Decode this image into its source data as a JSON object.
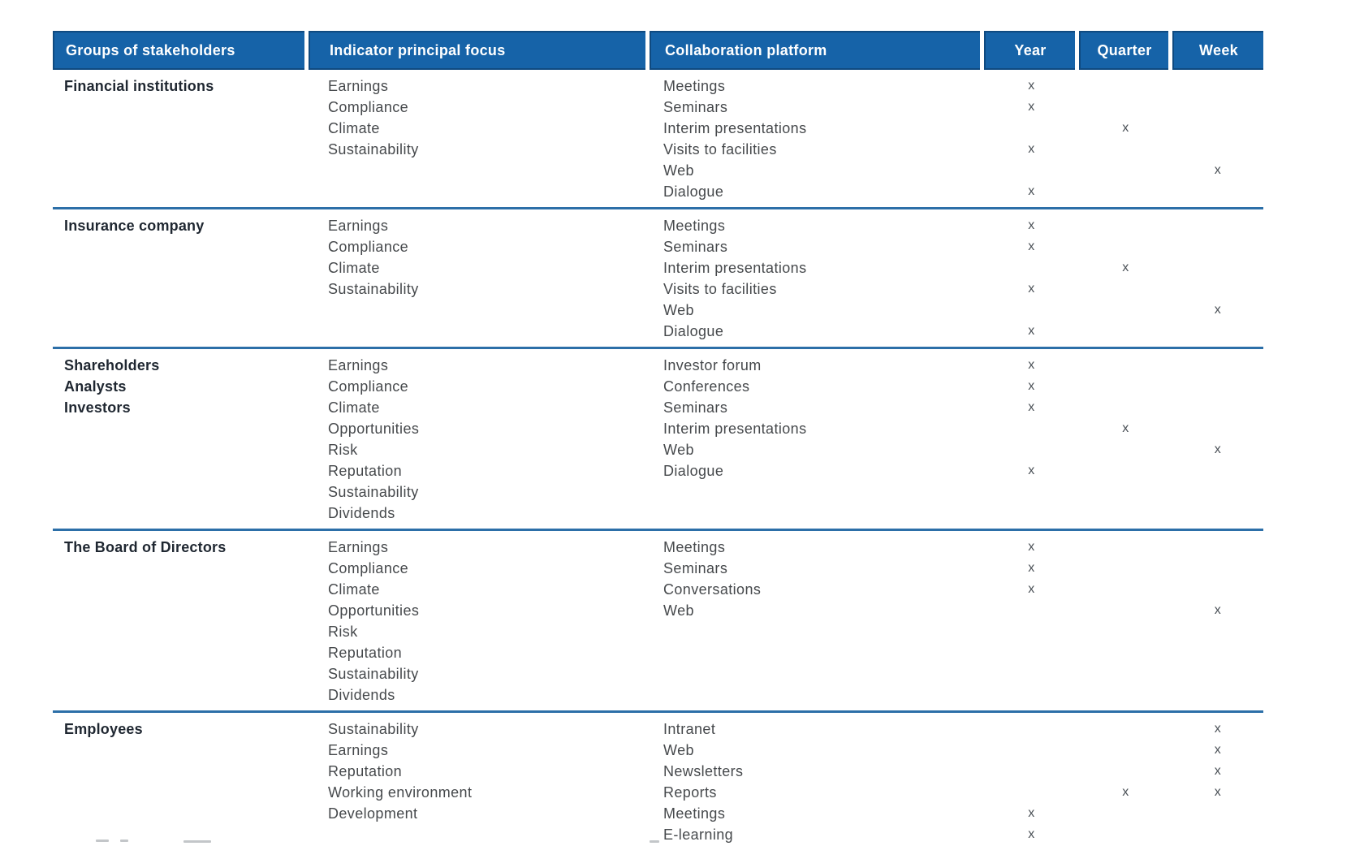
{
  "table": {
    "mark_glyph": "x",
    "columns": [
      {
        "label": "Groups of stakeholders"
      },
      {
        "label": "Indicator principal focus"
      },
      {
        "label": "Collaboration platform"
      },
      {
        "label": "Year"
      },
      {
        "label": "Quarter"
      },
      {
        "label": "Week"
      }
    ],
    "groups": [
      {
        "name_lines": [
          "Financial institutions"
        ],
        "indicators": [
          "Earnings",
          "Compliance",
          "Climate",
          "Sustainability"
        ],
        "platforms": [
          {
            "name": "Meetings",
            "periods": [
              "year"
            ]
          },
          {
            "name": "Seminars",
            "periods": [
              "year"
            ]
          },
          {
            "name": "Interim presentations",
            "periods": [
              "quarter"
            ]
          },
          {
            "name": "Visits to facilities",
            "periods": [
              "year"
            ]
          },
          {
            "name": "Web",
            "periods": [
              "week"
            ]
          },
          {
            "name": "Dialogue",
            "periods": [
              "year"
            ]
          }
        ]
      },
      {
        "name_lines": [
          "Insurance company"
        ],
        "indicators": [
          "Earnings",
          "Compliance",
          "Climate",
          "Sustainability"
        ],
        "platforms": [
          {
            "name": "Meetings",
            "periods": [
              "year"
            ]
          },
          {
            "name": "Seminars",
            "periods": [
              "year"
            ]
          },
          {
            "name": "Interim presentations",
            "periods": [
              "quarter"
            ]
          },
          {
            "name": "Visits to facilities",
            "periods": [
              "year"
            ]
          },
          {
            "name": "Web",
            "periods": [
              "week"
            ]
          },
          {
            "name": "Dialogue",
            "periods": [
              "year"
            ]
          }
        ]
      },
      {
        "name_lines": [
          "Shareholders",
          "Analysts",
          "Investors"
        ],
        "indicators": [
          "Earnings",
          "Compliance",
          "Climate",
          "Opportunities",
          "Risk",
          "Reputation",
          "Sustainability",
          "Dividends"
        ],
        "platforms": [
          {
            "name": "Investor forum",
            "periods": [
              "year"
            ]
          },
          {
            "name": "Conferences",
            "periods": [
              "year"
            ]
          },
          {
            "name": "Seminars",
            "periods": [
              "year"
            ]
          },
          {
            "name": "Interim presentations",
            "periods": [
              "quarter"
            ]
          },
          {
            "name": "Web",
            "periods": [
              "week"
            ]
          },
          {
            "name": "Dialogue",
            "periods": [
              "year"
            ]
          }
        ]
      },
      {
        "name_lines": [
          "The Board of Directors"
        ],
        "indicators": [
          "Earnings",
          "Compliance",
          "Climate",
          "Opportunities",
          "Risk",
          "Reputation",
          "Sustainability",
          "Dividends"
        ],
        "platforms": [
          {
            "name": "Meetings",
            "periods": [
              "year"
            ]
          },
          {
            "name": "Seminars",
            "periods": [
              "year"
            ]
          },
          {
            "name": "Conversations",
            "periods": [
              "year"
            ]
          },
          {
            "name": "Web",
            "periods": [
              "week"
            ]
          }
        ]
      },
      {
        "name_lines": [
          "Employees"
        ],
        "indicators": [
          "Sustainability",
          "Earnings",
          "Reputation",
          "Working environment",
          "Development"
        ],
        "platforms": [
          {
            "name": "Intranet",
            "periods": [
              "week"
            ]
          },
          {
            "name": "Web",
            "periods": [
              "week"
            ]
          },
          {
            "name": "Newsletters",
            "periods": [
              "week"
            ]
          },
          {
            "name": "Reports",
            "periods": [
              "quarter",
              "week"
            ]
          },
          {
            "name": "Meetings",
            "periods": [
              "year"
            ]
          },
          {
            "name": "E-learning",
            "periods": [
              "year"
            ]
          }
        ]
      }
    ]
  },
  "colors": {
    "header_bg": "#1663a8",
    "header_border": "#0f4a80",
    "header_text": "#ffffff",
    "divider_blue": "#2c6fa8",
    "body_text": "#46494c",
    "group_text": "#1f2731",
    "mark_text": "#4b5157"
  }
}
